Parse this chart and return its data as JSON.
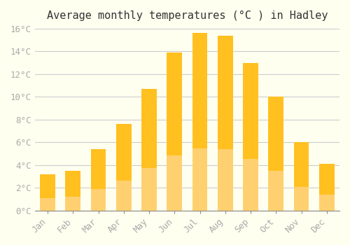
{
  "title": "Average monthly temperatures (°C ) in Hadley",
  "months": [
    "Jan",
    "Feb",
    "Mar",
    "Apr",
    "May",
    "Jun",
    "Jul",
    "Aug",
    "Sep",
    "Oct",
    "Nov",
    "Dec"
  ],
  "values": [
    3.2,
    3.5,
    5.4,
    7.6,
    10.7,
    13.9,
    15.6,
    15.4,
    13.0,
    10.0,
    6.0,
    4.1
  ],
  "bar_color_top": "#FFC020",
  "bar_color_bottom": "#FFD070",
  "ylim": [
    0,
    16
  ],
  "yticks": [
    0,
    2,
    4,
    6,
    8,
    10,
    12,
    14,
    16
  ],
  "background_color": "#FFFFF0",
  "grid_color": "#CCCCCC",
  "title_fontsize": 11,
  "tick_fontsize": 9,
  "tick_label_color": "#AAAAAA",
  "font_family": "monospace"
}
